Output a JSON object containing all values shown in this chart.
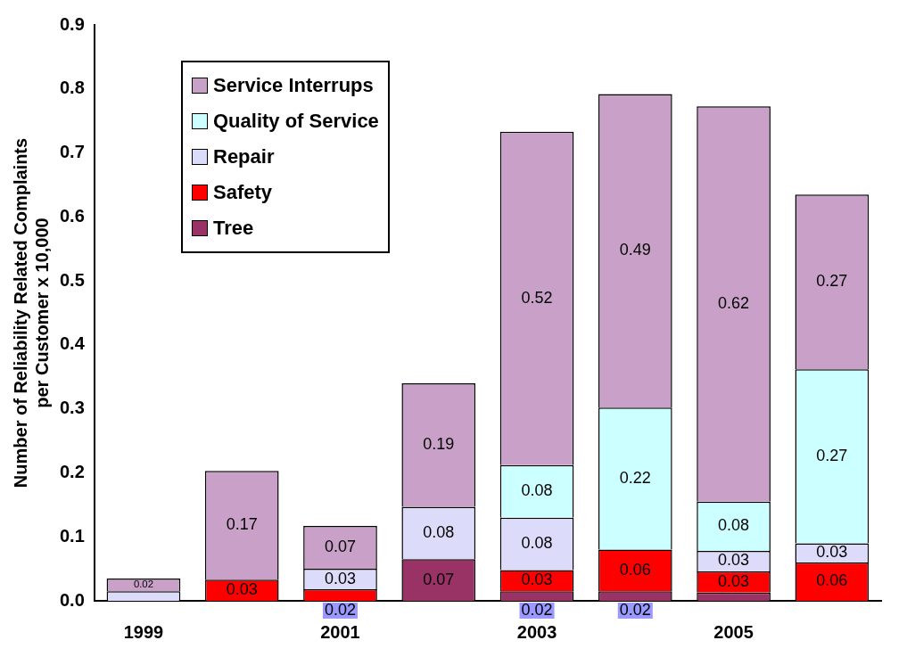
{
  "chart_data": {
    "type": "bar",
    "stacked": true,
    "ylabel": "Number of Reliability Related Complaints\nper Customer x 10,000",
    "categories": [
      "1999",
      null,
      "2001",
      null,
      "2003",
      null,
      "2005",
      null
    ],
    "series": [
      {
        "name": "Tree",
        "color": "#993366",
        "values": [
          null,
          null,
          null,
          0.065,
          0.015,
          0.015,
          0.013,
          null
        ],
        "value_labels": [
          null,
          null,
          null,
          "0.07",
          "0.02",
          "0.02",
          null,
          null
        ]
      },
      {
        "name": "Safety",
        "color": "#ff0000",
        "values": [
          null,
          0.033,
          0.018,
          null,
          0.033,
          0.065,
          0.033,
          0.06
        ],
        "value_labels": [
          null,
          "0.03",
          "0.02",
          null,
          "0.03",
          "0.06",
          "0.03",
          "0.06"
        ]
      },
      {
        "name": "Repair",
        "color": "#dcdcfa",
        "values": [
          0.015,
          null,
          0.032,
          0.082,
          0.082,
          null,
          0.032,
          0.03
        ],
        "value_labels": [
          null,
          null,
          "0.03",
          "0.08",
          "0.08",
          null,
          "0.03",
          "0.03"
        ]
      },
      {
        "name": "Quality of Service",
        "color": "#ccffff",
        "values": [
          null,
          null,
          null,
          null,
          0.082,
          0.222,
          0.077,
          0.272
        ],
        "value_labels": [
          null,
          null,
          null,
          null,
          "0.08",
          "0.22",
          "0.08",
          "0.27"
        ]
      },
      {
        "name": "Service Interrups",
        "color": "#c8a0c8",
        "values": [
          0.02,
          0.17,
          0.067,
          0.193,
          0.521,
          0.49,
          0.618,
          0.273
        ],
        "value_labels": [
          "0.02",
          "0.17",
          "0.07",
          "0.19",
          "0.52",
          "0.49",
          "0.62",
          "0.27"
        ]
      }
    ],
    "ylim": [
      0,
      0.9
    ],
    "yticks": [
      {
        "value": 0,
        "label": "0.0"
      },
      {
        "value": 0.1,
        "label": "0.1"
      },
      {
        "value": 0.2,
        "label": "0.2"
      },
      {
        "value": 0.3,
        "label": "0.3"
      },
      {
        "value": 0.4,
        "label": "0.4"
      },
      {
        "value": 0.5,
        "label": "0.5"
      },
      {
        "value": 0.6,
        "label": "0.6"
      },
      {
        "value": 0.7,
        "label": "0.7"
      },
      {
        "value": 0.8,
        "label": "0.8"
      },
      {
        "value": 0.9,
        "label": "0.9"
      }
    ],
    "grid": false,
    "legend": "top left"
  }
}
